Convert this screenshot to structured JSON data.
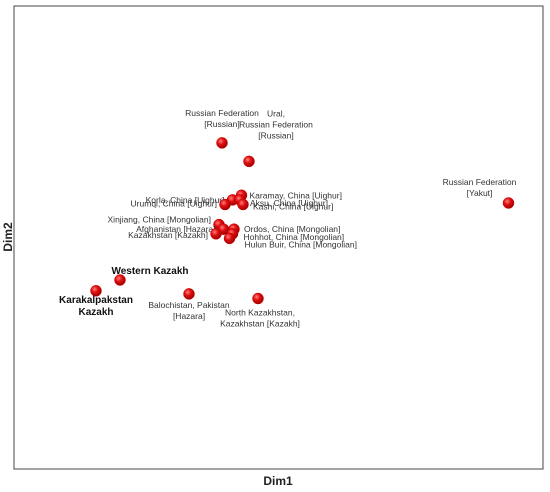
{
  "chart_data": {
    "type": "scatter",
    "xlabel": "Dim1",
    "ylabel": "Dim2",
    "grid": false,
    "legend": "none",
    "point_color": "#cc0000",
    "points": [
      {
        "x": 0.06,
        "y": 0.36,
        "label": [
          "Western Kazakh"
        ],
        "bold": true
      },
      {
        "x": -0.1,
        "y": 0.29,
        "label": [
          "Karakalpakstan",
          "Kazakh"
        ],
        "bold": true
      },
      {
        "x": 0.74,
        "y": 1.25,
        "label": [
          "Russian Federation",
          "[Russian]"
        ]
      },
      {
        "x": 0.92,
        "y": 1.13,
        "label": [
          "Ural,",
          "Russian Federation",
          "[Russian]"
        ]
      },
      {
        "x": 0.87,
        "y": 0.91,
        "label": [
          "Karamay, China [Uighur]"
        ]
      },
      {
        "x": 0.81,
        "y": 0.88,
        "label": [
          "Korla, China [Uighur]"
        ]
      },
      {
        "x": 0.86,
        "y": 0.88,
        "label": [
          "Aksu, China [Uighur]"
        ]
      },
      {
        "x": 0.76,
        "y": 0.85,
        "label": [
          "Urumqi, China [Uighur]"
        ]
      },
      {
        "x": 0.88,
        "y": 0.85,
        "label": [
          "Kashi, China [Uighur]"
        ]
      },
      {
        "x": 0.72,
        "y": 0.72,
        "label": [
          "Xinjiang, China [Mongolian]"
        ]
      },
      {
        "x": 0.75,
        "y": 0.69,
        "label": [
          "Afghanistan [Hazara]"
        ]
      },
      {
        "x": 0.7,
        "y": 0.66,
        "label": [
          "Kazakhstan [Kazakh]"
        ]
      },
      {
        "x": 0.82,
        "y": 0.69,
        "label": [
          "Ordos, China [Mongolian]"
        ]
      },
      {
        "x": 0.81,
        "y": 0.66,
        "label": [
          "Hohhot, China [Mongolian]"
        ]
      },
      {
        "x": 0.79,
        "y": 0.63,
        "label": [
          "Hulun Buir, China [Mongolian]"
        ]
      },
      {
        "x": 0.52,
        "y": 0.27,
        "label": [
          "Balochistan, Pakistan",
          "[Hazara]"
        ]
      },
      {
        "x": 0.98,
        "y": 0.24,
        "label": [
          "North Kazakhstan,",
          "Kazakhstan [Kazakh]"
        ]
      },
      {
        "x": 2.65,
        "y": 0.86,
        "label": [
          "Russian Federation",
          "[Yakut]"
        ]
      }
    ]
  }
}
